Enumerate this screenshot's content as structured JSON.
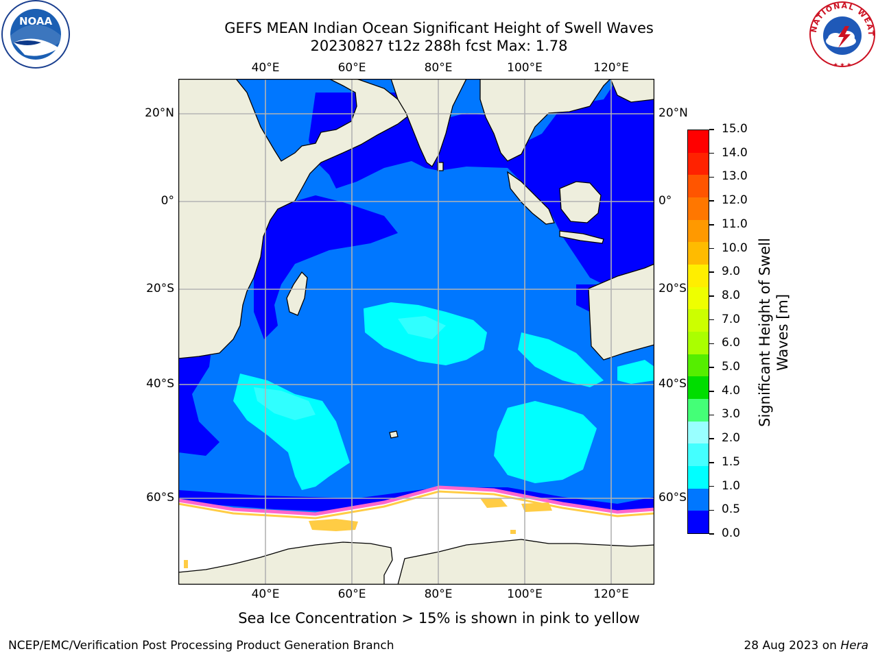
{
  "header": {
    "title_line1": "GEFS MEAN Indian Ocean Significant Height of Swell Waves",
    "title_line2": "20230827 t12z 288h fcst   Max: 1.78"
  },
  "map": {
    "lon_labels": [
      "40°E",
      "60°E",
      "80°E",
      "100°E",
      "120°E"
    ],
    "lat_labels": [
      "20°N",
      "0°",
      "20°S",
      "40°S",
      "60°S"
    ],
    "colors": {
      "land": "#eeeedd",
      "ocean_low": "#0000ff",
      "ocean_mid": "#0077ff",
      "ocean_high": "#00ffff",
      "ocean_lighter": "#44ffff",
      "ice": "#ffffff",
      "ice_edge_pink": "#ff66cc",
      "ice_edge_yellow": "#ffcc44",
      "grid": "#b3b3b3"
    }
  },
  "colorbar": {
    "ticks": [
      "15.0",
      "14.0",
      "13.0",
      "12.0",
      "11.0",
      "10.0",
      "9.0",
      "8.0",
      "7.0",
      "6.0",
      "5.0",
      "4.0",
      "3.0",
      "2.0",
      "1.5",
      "1.0",
      "0.5",
      "0.0"
    ],
    "colors_top_to_bottom": [
      "#ff0000",
      "#ff2200",
      "#ff5500",
      "#ff7700",
      "#ff9900",
      "#ffbb00",
      "#ffee00",
      "#eeff00",
      "#ccff00",
      "#aaff00",
      "#55ee00",
      "#00dd00",
      "#44ff77",
      "#99ffff",
      "#44ffff",
      "#00ffff",
      "#0077ff",
      "#0000ff"
    ],
    "label_line1": "Significant Height of Swell",
    "label_line2": "Waves [m]"
  },
  "caption": "Sea Ice Concentration > 15% is shown in pink to yellow",
  "footer": {
    "left": "NCEP/EMC/Verification Post Processing Product Generation Branch",
    "right_prefix": "28 Aug 2023 on ",
    "right_host": "Hera"
  },
  "logos": {
    "left_text": "NOAA",
    "right_text": "NATIONAL WEATHER SERVICE"
  }
}
